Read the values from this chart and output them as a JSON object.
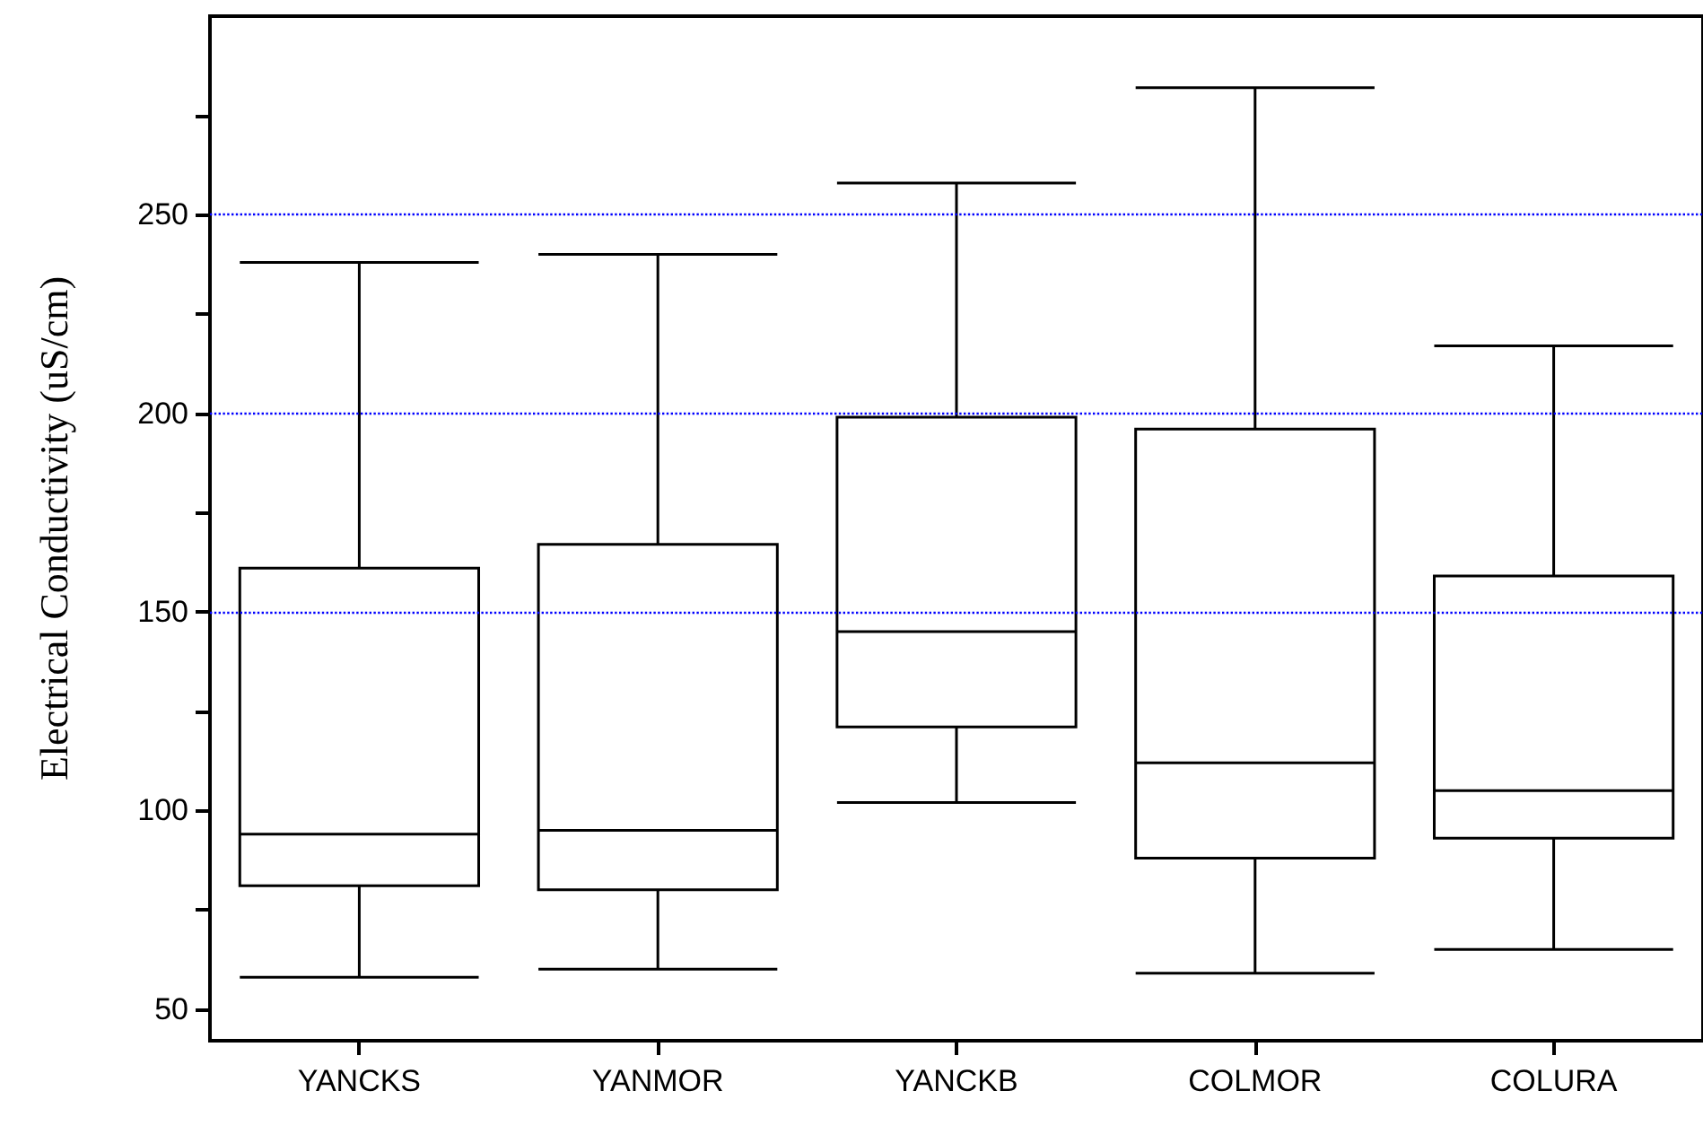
{
  "chart_data": {
    "type": "box",
    "ylabel": "Electrical Conductivity (uS/cm)",
    "categories": [
      "YANCKS",
      "YANMOR",
      "YANCKB",
      "COLMOR",
      "COLURA"
    ],
    "boxes": [
      {
        "low": 58,
        "q1": 81,
        "median": 94,
        "q3": 161,
        "high": 238
      },
      {
        "low": 60,
        "q1": 80,
        "median": 95,
        "q3": 167,
        "high": 240
      },
      {
        "low": 102,
        "q1": 121,
        "median": 145,
        "q3": 199,
        "high": 258
      },
      {
        "low": 59,
        "q1": 88,
        "median": 112,
        "q3": 196,
        "high": 282
      },
      {
        "low": 65,
        "q1": 93,
        "median": 105,
        "q3": 159,
        "high": 217
      }
    ],
    "color": "#000000",
    "ylim": [
      42,
      300
    ],
    "yticks": [
      50,
      {
        "value": 75,
        "label": null
      },
      100,
      {
        "value": 125,
        "label": null
      },
      150,
      {
        "value": 175,
        "label": null
      },
      200,
      {
        "value": 225,
        "label": null
      },
      250,
      {
        "value": 275,
        "label": null
      }
    ],
    "ref_lines": [
      {
        "axis": "y",
        "value": 150,
        "color": "#0000ff",
        "line_style": "dotted"
      },
      {
        "axis": "y",
        "value": 200,
        "color": "#0000ff",
        "line_style": "dotted"
      },
      {
        "axis": "y",
        "value": 250,
        "color": "#0000ff",
        "line_style": "dotted"
      }
    ]
  }
}
